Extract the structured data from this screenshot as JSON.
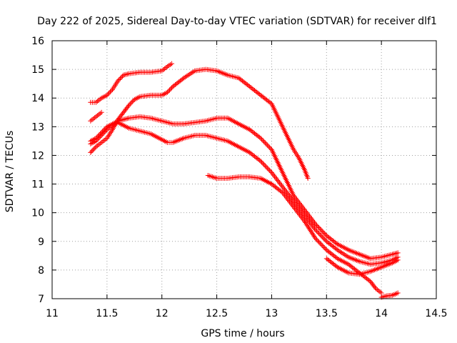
{
  "chart_data": {
    "type": "scatter",
    "title": "Day 222 of 2025, Sidereal Day-to-day VTEC variation (SDTVAR) for receiver dlf1",
    "xlabel": "GPS time / hours",
    "ylabel": "SDTVAR / TECUs",
    "xlim": [
      11,
      14.5
    ],
    "ylim": [
      7,
      16
    ],
    "xticks": [
      "11",
      "11.5",
      "12",
      "12.5",
      "13",
      "13.5",
      "14",
      "14.5"
    ],
    "yticks": [
      "7",
      "8",
      "9",
      "10",
      "11",
      "12",
      "13",
      "14",
      "15",
      "16"
    ],
    "grid": true,
    "marker": "plus",
    "color": "#ff0000",
    "series": [
      {
        "name": "track-1",
        "points": [
          [
            11.35,
            13.85
          ],
          [
            11.4,
            13.85
          ],
          [
            11.45,
            14.0
          ],
          [
            11.5,
            14.1
          ],
          [
            11.55,
            14.3
          ],
          [
            11.6,
            14.6
          ],
          [
            11.65,
            14.8
          ],
          [
            11.7,
            14.85
          ],
          [
            11.8,
            14.9
          ],
          [
            11.9,
            14.9
          ],
          [
            12.0,
            14.95
          ],
          [
            12.05,
            15.1
          ],
          [
            12.09,
            15.2
          ]
        ]
      },
      {
        "name": "track-2",
        "points": [
          [
            11.35,
            13.2
          ],
          [
            11.4,
            13.35
          ],
          [
            11.45,
            13.5
          ]
        ]
      },
      {
        "name": "track-3",
        "points": [
          [
            11.35,
            12.1
          ],
          [
            11.4,
            12.3
          ],
          [
            11.45,
            12.45
          ],
          [
            11.5,
            12.6
          ],
          [
            11.55,
            12.9
          ],
          [
            11.6,
            13.25
          ],
          [
            11.65,
            13.5
          ],
          [
            11.7,
            13.75
          ],
          [
            11.75,
            13.95
          ],
          [
            11.8,
            14.05
          ],
          [
            11.9,
            14.1
          ],
          [
            12.0,
            14.1
          ],
          [
            12.05,
            14.2
          ],
          [
            12.1,
            14.4
          ],
          [
            12.2,
            14.7
          ],
          [
            12.3,
            14.95
          ],
          [
            12.4,
            15.0
          ],
          [
            12.5,
            14.95
          ],
          [
            12.6,
            14.8
          ],
          [
            12.7,
            14.7
          ],
          [
            12.8,
            14.4
          ],
          [
            12.9,
            14.1
          ],
          [
            13.0,
            13.8
          ],
          [
            13.05,
            13.4
          ],
          [
            13.1,
            13.0
          ],
          [
            13.15,
            12.6
          ],
          [
            13.2,
            12.2
          ],
          [
            13.25,
            11.9
          ],
          [
            13.3,
            11.5
          ],
          [
            13.33,
            11.2
          ]
        ]
      },
      {
        "name": "track-4",
        "points": [
          [
            11.35,
            12.5
          ],
          [
            11.4,
            12.6
          ],
          [
            11.45,
            12.8
          ],
          [
            11.5,
            13.0
          ],
          [
            11.55,
            13.1
          ],
          [
            11.6,
            13.2
          ],
          [
            11.65,
            13.25
          ],
          [
            11.7,
            13.3
          ],
          [
            11.8,
            13.35
          ],
          [
            11.9,
            13.3
          ],
          [
            12.0,
            13.2
          ],
          [
            12.1,
            13.1
          ],
          [
            12.2,
            13.1
          ],
          [
            12.3,
            13.15
          ],
          [
            12.4,
            13.2
          ],
          [
            12.5,
            13.3
          ],
          [
            12.6,
            13.3
          ],
          [
            12.7,
            13.1
          ],
          [
            12.8,
            12.9
          ],
          [
            12.9,
            12.6
          ],
          [
            13.0,
            12.2
          ],
          [
            13.05,
            11.8
          ],
          [
            13.1,
            11.4
          ],
          [
            13.15,
            11.0
          ],
          [
            13.2,
            10.6
          ],
          [
            13.3,
            10.1
          ],
          [
            13.4,
            9.6
          ],
          [
            13.5,
            9.2
          ],
          [
            13.6,
            8.9
          ],
          [
            13.7,
            8.7
          ],
          [
            13.8,
            8.55
          ],
          [
            13.9,
            8.4
          ],
          [
            14.0,
            8.45
          ],
          [
            14.1,
            8.55
          ],
          [
            14.15,
            8.6
          ]
        ]
      },
      {
        "name": "track-5",
        "points": [
          [
            11.35,
            12.4
          ],
          [
            11.4,
            12.5
          ],
          [
            11.45,
            12.7
          ],
          [
            11.5,
            12.9
          ],
          [
            11.55,
            13.05
          ],
          [
            11.6,
            13.15
          ],
          [
            11.65,
            13.05
          ],
          [
            11.7,
            12.95
          ],
          [
            11.8,
            12.85
          ],
          [
            11.9,
            12.75
          ],
          [
            12.0,
            12.55
          ],
          [
            12.05,
            12.45
          ],
          [
            12.1,
            12.45
          ],
          [
            12.2,
            12.6
          ],
          [
            12.3,
            12.7
          ],
          [
            12.4,
            12.7
          ],
          [
            12.5,
            12.6
          ],
          [
            12.6,
            12.5
          ],
          [
            12.7,
            12.3
          ],
          [
            12.8,
            12.1
          ],
          [
            12.9,
            11.8
          ],
          [
            13.0,
            11.4
          ],
          [
            13.1,
            10.9
          ],
          [
            13.2,
            10.4
          ],
          [
            13.3,
            9.9
          ],
          [
            13.4,
            9.4
          ],
          [
            13.5,
            9.0
          ],
          [
            13.6,
            8.7
          ],
          [
            13.7,
            8.45
          ],
          [
            13.8,
            8.3
          ],
          [
            13.9,
            8.2
          ],
          [
            14.0,
            8.25
          ],
          [
            14.1,
            8.35
          ],
          [
            14.15,
            8.45
          ]
        ]
      },
      {
        "name": "track-6",
        "points": [
          [
            12.42,
            11.3
          ],
          [
            12.5,
            11.2
          ],
          [
            12.6,
            11.2
          ],
          [
            12.7,
            11.25
          ],
          [
            12.8,
            11.25
          ],
          [
            12.9,
            11.2
          ],
          [
            13.0,
            11.0
          ],
          [
            13.1,
            10.7
          ],
          [
            13.2,
            10.2
          ],
          [
            13.3,
            9.7
          ],
          [
            13.4,
            9.1
          ],
          [
            13.5,
            8.7
          ],
          [
            13.6,
            8.4
          ],
          [
            13.7,
            8.2
          ],
          [
            13.8,
            7.9
          ],
          [
            13.9,
            7.6
          ],
          [
            13.95,
            7.35
          ],
          [
            14.0,
            7.2
          ]
        ]
      },
      {
        "name": "track-7",
        "points": [
          [
            14.0,
            7.05
          ],
          [
            14.05,
            7.1
          ],
          [
            14.1,
            7.12
          ],
          [
            14.15,
            7.2
          ]
        ]
      },
      {
        "name": "track-8",
        "points": [
          [
            13.5,
            8.4
          ],
          [
            13.6,
            8.1
          ],
          [
            13.7,
            7.9
          ],
          [
            13.8,
            7.85
          ],
          [
            13.9,
            7.95
          ],
          [
            14.0,
            8.1
          ],
          [
            14.1,
            8.25
          ],
          [
            14.15,
            8.35
          ]
        ]
      }
    ]
  }
}
